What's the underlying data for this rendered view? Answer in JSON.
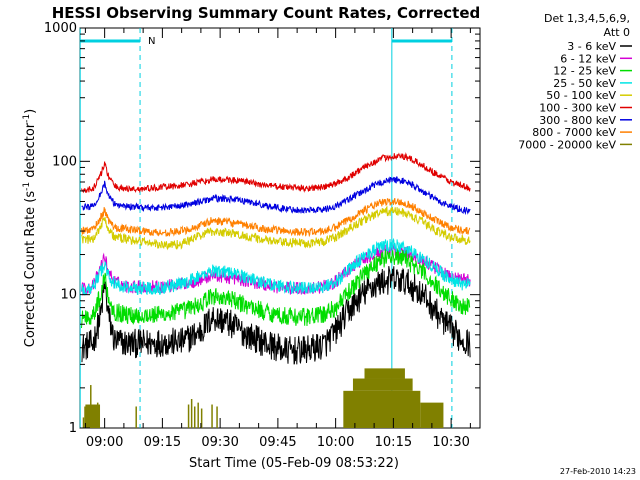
{
  "chart_data": {
    "type": "line",
    "title": "HESSI Observing Summary Count Rates, Corrected",
    "xlabel": "Start Time (05-Feb-09 08:53:22)",
    "ylabel_main": "Corrected Count Rate (s",
    "ylabel_sup1": "-1",
    "ylabel_mid": " detector",
    "ylabel_sup2": "-1",
    "ylabel_end": ")",
    "yscale": "log",
    "ylim": [
      1,
      1000
    ],
    "xlim_minutes": [
      -6.4,
      97.5
    ],
    "x_tick_labels": [
      "09:00",
      "09:15",
      "09:30",
      "09:45",
      "10:00",
      "10:15",
      "10:30"
    ],
    "x_tick_minutes": [
      0,
      15,
      30,
      45,
      60,
      75,
      90
    ],
    "y_tick_labels": [
      "1",
      "10",
      "100",
      "1000"
    ],
    "y_tick_values": [
      1,
      10,
      100,
      1000
    ],
    "legend_header": [
      "Det 1,3,4,5,6,9,",
      "Att 0"
    ],
    "legend_placement": "right",
    "series": [
      {
        "name": "3 - 6 keV",
        "color": "#000000",
        "noise": 0.11,
        "points": [
          [
            -6,
            4
          ],
          [
            -3,
            4.3
          ],
          [
            -1,
            7
          ],
          [
            0,
            12
          ],
          [
            1,
            7
          ],
          [
            2.5,
            4.5
          ],
          [
            6,
            4.3
          ],
          [
            10,
            4.3
          ],
          [
            15,
            4.4
          ],
          [
            20,
            4.4
          ],
          [
            25,
            5.3
          ],
          [
            28,
            6.8
          ],
          [
            32,
            6.2
          ],
          [
            37,
            5
          ],
          [
            42,
            4.3
          ],
          [
            47,
            3.8
          ],
          [
            52,
            3.8
          ],
          [
            57,
            4.2
          ],
          [
            60,
            5.3
          ],
          [
            63,
            7.3
          ],
          [
            66,
            9.3
          ],
          [
            69,
            11.3
          ],
          [
            72,
            12.5
          ],
          [
            75,
            13
          ],
          [
            78,
            12.5
          ],
          [
            81,
            11
          ],
          [
            84,
            9
          ],
          [
            87,
            6.8
          ],
          [
            90,
            5.4
          ],
          [
            93,
            4.6
          ],
          [
            95,
            4.3
          ]
        ]
      },
      {
        "name": "6 - 12 keV",
        "color": "#d400d4",
        "noise": 0.05,
        "points": [
          [
            -6,
            11
          ],
          [
            -3,
            11.5
          ],
          [
            -1,
            16
          ],
          [
            0,
            19
          ],
          [
            1,
            15
          ],
          [
            2.5,
            12.5
          ],
          [
            6,
            11.5
          ],
          [
            10,
            11.5
          ],
          [
            15,
            11.5
          ],
          [
            20,
            12
          ],
          [
            25,
            13
          ],
          [
            28,
            14
          ],
          [
            32,
            13.5
          ],
          [
            37,
            12.8
          ],
          [
            42,
            11.8
          ],
          [
            47,
            11.2
          ],
          [
            52,
            11.1
          ],
          [
            57,
            11.5
          ],
          [
            60,
            12.5
          ],
          [
            63,
            15
          ],
          [
            66,
            17.5
          ],
          [
            69,
            19.5
          ],
          [
            72,
            21
          ],
          [
            75,
            21.5
          ],
          [
            78,
            21
          ],
          [
            81,
            19
          ],
          [
            84,
            17
          ],
          [
            87,
            15
          ],
          [
            90,
            13.5
          ],
          [
            93,
            13
          ],
          [
            95,
            12.8
          ]
        ]
      },
      {
        "name": "12 - 25 keV",
        "color": "#00dd00",
        "noise": 0.07,
        "points": [
          [
            -6,
            6.6
          ],
          [
            -3,
            7
          ],
          [
            -1,
            10
          ],
          [
            0,
            14
          ],
          [
            1,
            9.5
          ],
          [
            2.5,
            7.5
          ],
          [
            6,
            7
          ],
          [
            10,
            7
          ],
          [
            15,
            7.1
          ],
          [
            20,
            7.5
          ],
          [
            25,
            8.5
          ],
          [
            28,
            9.8
          ],
          [
            32,
            9.3
          ],
          [
            37,
            8.3
          ],
          [
            42,
            7.4
          ],
          [
            47,
            6.9
          ],
          [
            52,
            6.8
          ],
          [
            57,
            7.1
          ],
          [
            60,
            8
          ],
          [
            63,
            10
          ],
          [
            66,
            13
          ],
          [
            69,
            16
          ],
          [
            72,
            18.5
          ],
          [
            75,
            19.5
          ],
          [
            78,
            18.5
          ],
          [
            81,
            16
          ],
          [
            84,
            13.5
          ],
          [
            87,
            11
          ],
          [
            90,
            9.3
          ],
          [
            93,
            8.3
          ],
          [
            95,
            8
          ]
        ]
      },
      {
        "name": "25 - 50 keV",
        "color": "#00e5e5",
        "noise": 0.05,
        "points": [
          [
            -6,
            11
          ],
          [
            -3,
            11.3
          ],
          [
            -1,
            15
          ],
          [
            0,
            17
          ],
          [
            1,
            14
          ],
          [
            2.5,
            12
          ],
          [
            6,
            11.3
          ],
          [
            10,
            11.2
          ],
          [
            15,
            11.3
          ],
          [
            20,
            12
          ],
          [
            25,
            13.8
          ],
          [
            28,
            15.3
          ],
          [
            32,
            14.8
          ],
          [
            37,
            13.5
          ],
          [
            42,
            12.2
          ],
          [
            47,
            11.4
          ],
          [
            52,
            11.2
          ],
          [
            57,
            11.5
          ],
          [
            60,
            12.5
          ],
          [
            63,
            15
          ],
          [
            66,
            18
          ],
          [
            69,
            21
          ],
          [
            72,
            23
          ],
          [
            75,
            23.5
          ],
          [
            78,
            22.5
          ],
          [
            81,
            20
          ],
          [
            84,
            17.5
          ],
          [
            87,
            15
          ],
          [
            90,
            13
          ],
          [
            93,
            12
          ],
          [
            95,
            11.8
          ]
        ]
      },
      {
        "name": "50 - 100 keV",
        "color": "#d4cc00",
        "noise": 0.035,
        "points": [
          [
            -6,
            26
          ],
          [
            -3,
            26
          ],
          [
            -1,
            33
          ],
          [
            0,
            38
          ],
          [
            1,
            31
          ],
          [
            2.5,
            27
          ],
          [
            6,
            26
          ],
          [
            10,
            25
          ],
          [
            15,
            23.5
          ],
          [
            20,
            24
          ],
          [
            25,
            28
          ],
          [
            28,
            30
          ],
          [
            32,
            29
          ],
          [
            37,
            27.5
          ],
          [
            42,
            25.5
          ],
          [
            47,
            24.5
          ],
          [
            52,
            24.5
          ],
          [
            57,
            25
          ],
          [
            60,
            27
          ],
          [
            63,
            30.5
          ],
          [
            66,
            34.5
          ],
          [
            69,
            38.5
          ],
          [
            72,
            41.5
          ],
          [
            75,
            42.5
          ],
          [
            78,
            41
          ],
          [
            81,
            37
          ],
          [
            84,
            33
          ],
          [
            87,
            29.5
          ],
          [
            90,
            27
          ],
          [
            93,
            26
          ],
          [
            95,
            25.5
          ]
        ]
      },
      {
        "name": "100 - 300 keV",
        "color": "#e00000",
        "noise": 0.025,
        "points": [
          [
            -6,
            60
          ],
          [
            -3,
            62
          ],
          [
            -1,
            80
          ],
          [
            0,
            95
          ],
          [
            1,
            78
          ],
          [
            2.5,
            65
          ],
          [
            6,
            62
          ],
          [
            10,
            62
          ],
          [
            15,
            64
          ],
          [
            20,
            66
          ],
          [
            25,
            70
          ],
          [
            28,
            73
          ],
          [
            32,
            73
          ],
          [
            37,
            70
          ],
          [
            42,
            66
          ],
          [
            47,
            64
          ],
          [
            52,
            63
          ],
          [
            57,
            64
          ],
          [
            60,
            68
          ],
          [
            63,
            75
          ],
          [
            66,
            85
          ],
          [
            69,
            96
          ],
          [
            72,
            105
          ],
          [
            75,
            110
          ],
          [
            78,
            108
          ],
          [
            81,
            99
          ],
          [
            84,
            88
          ],
          [
            87,
            78
          ],
          [
            90,
            70
          ],
          [
            93,
            65
          ],
          [
            95,
            63
          ]
        ]
      },
      {
        "name": "300 - 800 keV",
        "color": "#0000e0",
        "noise": 0.025,
        "points": [
          [
            -6,
            45
          ],
          [
            -3,
            46
          ],
          [
            -1,
            58
          ],
          [
            0,
            68
          ],
          [
            1,
            55
          ],
          [
            2.5,
            48
          ],
          [
            6,
            46
          ],
          [
            10,
            45
          ],
          [
            15,
            45
          ],
          [
            20,
            46.5
          ],
          [
            25,
            50
          ],
          [
            28,
            52.5
          ],
          [
            32,
            52.5
          ],
          [
            37,
            50
          ],
          [
            42,
            46.5
          ],
          [
            47,
            44
          ],
          [
            52,
            43
          ],
          [
            57,
            43.5
          ],
          [
            60,
            46
          ],
          [
            63,
            51
          ],
          [
            66,
            57
          ],
          [
            69,
            64
          ],
          [
            72,
            70
          ],
          [
            75,
            73
          ],
          [
            78,
            71
          ],
          [
            81,
            64
          ],
          [
            84,
            56
          ],
          [
            87,
            50
          ],
          [
            90,
            46
          ],
          [
            93,
            43.5
          ],
          [
            95,
            42
          ]
        ]
      },
      {
        "name": "800 - 7000 keV",
        "color": "#ff8000",
        "noise": 0.03,
        "points": [
          [
            -6,
            30
          ],
          [
            -3,
            31
          ],
          [
            -1,
            38
          ],
          [
            0,
            43
          ],
          [
            1,
            36
          ],
          [
            2.5,
            32
          ],
          [
            6,
            31
          ],
          [
            10,
            30
          ],
          [
            15,
            29
          ],
          [
            20,
            30
          ],
          [
            25,
            33
          ],
          [
            28,
            36
          ],
          [
            32,
            35
          ],
          [
            37,
            33
          ],
          [
            42,
            31
          ],
          [
            47,
            30
          ],
          [
            52,
            29.5
          ],
          [
            57,
            30
          ],
          [
            60,
            32
          ],
          [
            63,
            36
          ],
          [
            66,
            41
          ],
          [
            69,
            45.5
          ],
          [
            72,
            49
          ],
          [
            75,
            50
          ],
          [
            78,
            49
          ],
          [
            81,
            44
          ],
          [
            84,
            39
          ],
          [
            87,
            35
          ],
          [
            90,
            32
          ],
          [
            93,
            30.5
          ],
          [
            95,
            30
          ]
        ]
      },
      {
        "name": "7000 - 20000 keV",
        "color": "#808000",
        "noise": 0,
        "points": [],
        "lines": [
          [
            -5.5,
            1.2
          ],
          [
            -5.1,
            1.45
          ],
          [
            -4.4,
            1.4
          ],
          [
            -3.6,
            2.1
          ],
          [
            -3.3,
            1.15
          ],
          [
            -2.7,
            1.5
          ],
          [
            -2.3,
            1.2
          ],
          [
            -1.8,
            1.55
          ],
          [
            -1.5,
            1.3
          ],
          [
            8.2,
            1.45
          ],
          [
            21.8,
            1.5
          ],
          [
            22.6,
            1.65
          ],
          [
            23.4,
            1.45
          ],
          [
            24.3,
            1.55
          ],
          [
            25.2,
            1.4
          ],
          [
            27.9,
            1.5
          ],
          [
            29.2,
            1.45
          ]
        ],
        "blocks": [
          [
            -5,
            -1.2,
            1,
            1.5
          ],
          [
            62,
            82,
            1,
            1.9
          ],
          [
            64.5,
            80,
            1.9,
            2.35
          ],
          [
            67.5,
            78,
            2.35,
            2.8
          ],
          [
            82,
            88,
            1,
            1.55
          ]
        ]
      }
    ],
    "vlines_cyan_solid_minutes": [
      -6.35,
      74.6
    ],
    "vlines_cyan_dashed_minutes": [
      9.2,
      90.2
    ],
    "attenuator_segments_minutes": [
      [
        -6.35,
        9.2
      ],
      [
        74.6,
        90.2
      ]
    ],
    "flag_label": "N"
  },
  "footer": {
    "date": "27-Feb-2010 14:23"
  }
}
